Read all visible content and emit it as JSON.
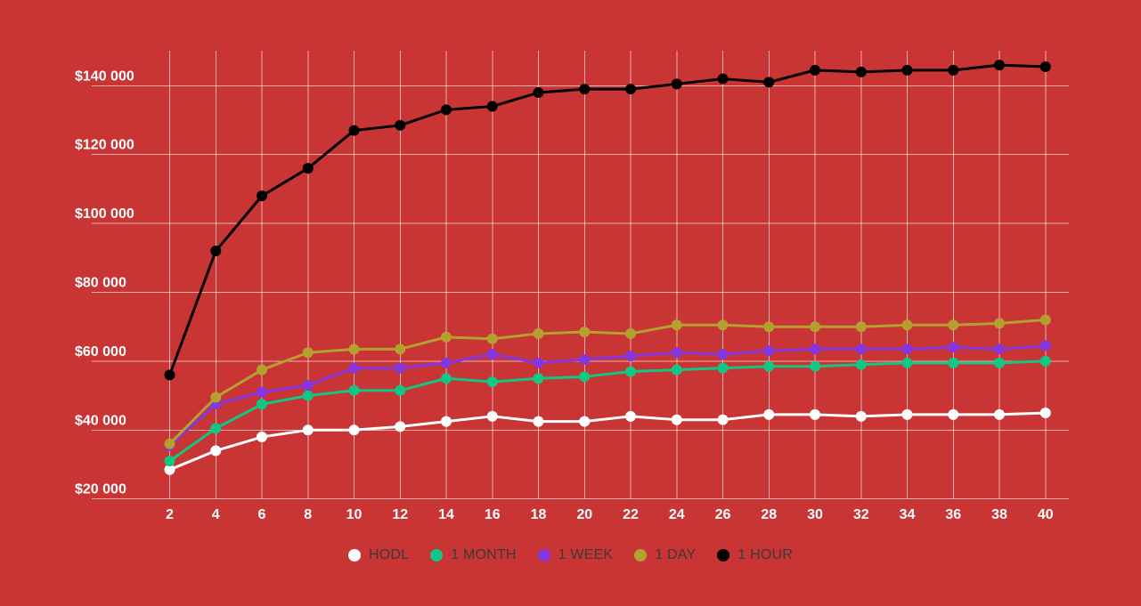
{
  "colors": {
    "background": "#C93434",
    "gridline": "rgba(255,255,255,0.62)",
    "tick_text": "#FFFFFF",
    "legend_text": "#3A3A3A"
  },
  "chart_data": {
    "type": "line",
    "title": "",
    "xlabel": "",
    "ylabel": "",
    "x": [
      2,
      4,
      6,
      8,
      10,
      12,
      14,
      16,
      18,
      20,
      22,
      24,
      26,
      28,
      30,
      32,
      34,
      36,
      38,
      40
    ],
    "xtick_labels": [
      "2",
      "4",
      "6",
      "8",
      "10",
      "12",
      "14",
      "16",
      "18",
      "20",
      "22",
      "24",
      "26",
      "28",
      "30",
      "32",
      "34",
      "36",
      "38",
      "40"
    ],
    "yticks": [
      20000,
      40000,
      60000,
      80000,
      100000,
      120000,
      140000
    ],
    "ytick_labels": [
      "$20 000",
      "$40 000",
      "$60 000",
      "$80 000",
      "$100 000",
      "$120 000",
      "$140 000"
    ],
    "ylim": [
      20000,
      150000
    ],
    "grid": true,
    "legend_position": "bottom",
    "series": [
      {
        "name": "HODL",
        "color": "#FFFFFF",
        "values": [
          28500,
          34000,
          38000,
          40000,
          40000,
          41000,
          42500,
          44000,
          42500,
          42500,
          44000,
          43000,
          43000,
          44500,
          44500,
          44000,
          44500,
          44500,
          44500,
          45000
        ]
      },
      {
        "name": "1 MONTH",
        "color": "#11C784",
        "values": [
          31000,
          40500,
          47500,
          50000,
          51500,
          51500,
          55000,
          54000,
          55000,
          55500,
          57000,
          57500,
          58000,
          58500,
          58500,
          59000,
          59500,
          59500,
          59500,
          60000
        ]
      },
      {
        "name": "1 WEEK",
        "color": "#8636DF",
        "values": [
          35500,
          47500,
          51000,
          53000,
          58000,
          58000,
          59500,
          62000,
          59500,
          60500,
          61500,
          62500,
          62000,
          63000,
          63500,
          63500,
          63500,
          64000,
          63500,
          64500
        ]
      },
      {
        "name": "1 DAY",
        "color": "#B4A02F",
        "values": [
          36000,
          49500,
          57500,
          62500,
          63500,
          63500,
          67000,
          66500,
          68000,
          68500,
          68000,
          70500,
          70500,
          70000,
          70000,
          70000,
          70500,
          70500,
          71000,
          72000
        ]
      },
      {
        "name": "1 HOUR",
        "color": "#000000",
        "values": [
          56000,
          92000,
          108000,
          116000,
          127000,
          128500,
          133000,
          134000,
          138000,
          139000,
          139000,
          140500,
          142000,
          141000,
          144500,
          144000,
          144500,
          144500,
          146000,
          145500
        ]
      }
    ]
  }
}
